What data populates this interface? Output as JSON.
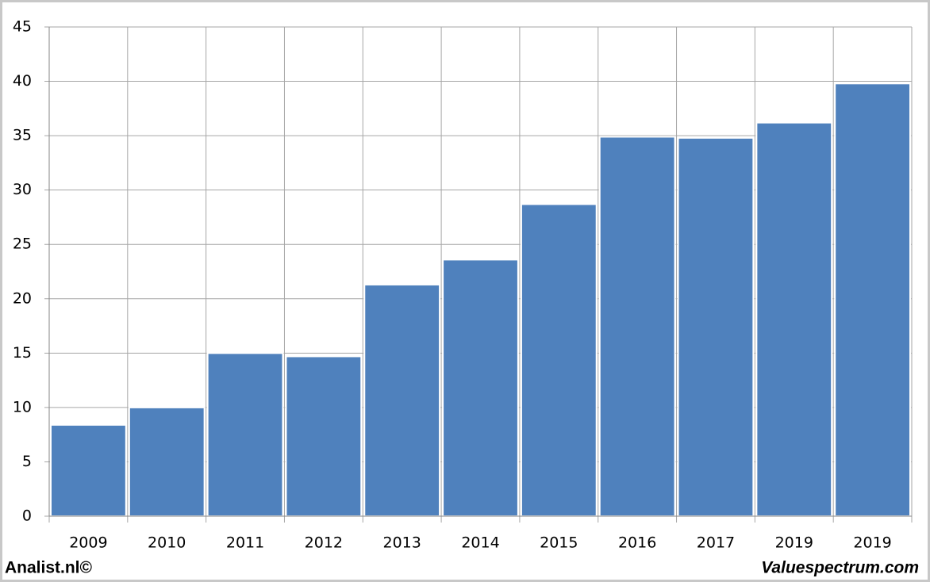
{
  "chart_data": {
    "type": "bar",
    "categories": [
      "2009",
      "2010",
      "2011",
      "2012",
      "2013",
      "2014",
      "2015",
      "2016",
      "2017",
      "2019",
      "2019"
    ],
    "values": [
      8.4,
      10.0,
      15.0,
      14.7,
      21.3,
      23.6,
      28.7,
      34.9,
      34.8,
      36.2,
      39.8
    ],
    "color": "#4f81bd",
    "ylim": [
      0,
      45
    ],
    "yticks": [
      0,
      5,
      10,
      15,
      20,
      25,
      30,
      35,
      40,
      45
    ],
    "grid": true,
    "footer_left": "Analist.nl©",
    "footer_right": "Valuespectrum.com"
  }
}
